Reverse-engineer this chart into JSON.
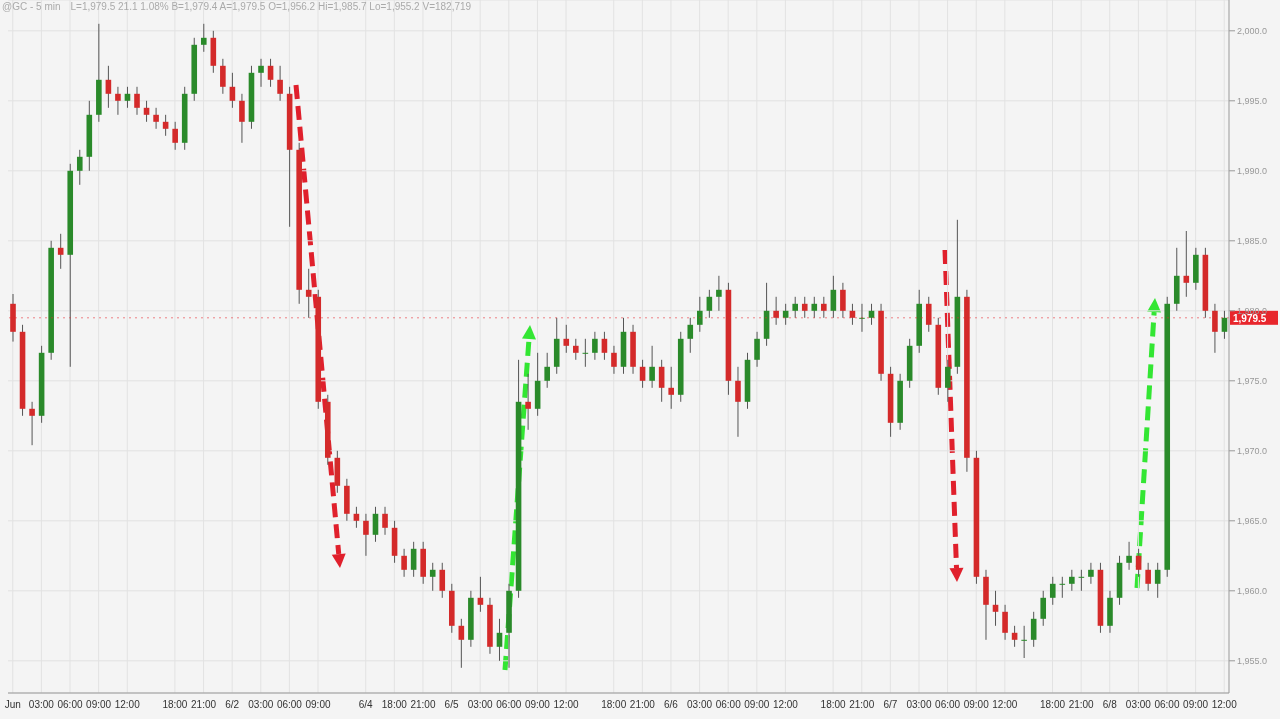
{
  "chart_data": {
    "type": "candlestick",
    "title": "@GC - 5 min",
    "subtitle": "L=1,979.5  21.1  1.08%  B=1,979.4  A=1,979.5  O=1,956.2  Hi=1,985.7  Lo=1,955.2  V=182,719",
    "categories": [
      "Jun",
      null,
      null,
      "03:00",
      null,
      null,
      "06:00",
      null,
      null,
      "09:00",
      null,
      null,
      "12:00",
      null,
      null,
      null,
      null,
      "18:00",
      null,
      null,
      "21:00",
      null,
      null,
      "6/2",
      null,
      null,
      "03:00",
      null,
      null,
      "06:00",
      null,
      null,
      "09:00",
      null,
      null,
      null,
      null,
      "6/4",
      null,
      null,
      "18:00",
      null,
      null,
      "21:00",
      null,
      null,
      "6/5",
      null,
      null,
      "03:00",
      null,
      null,
      "06:00",
      null,
      null,
      "09:00",
      null,
      null,
      "12:00",
      null,
      null,
      null,
      null,
      "18:00",
      null,
      null,
      "21:00",
      null,
      null,
      "6/6",
      null,
      null,
      "03:00",
      null,
      null,
      "06:00",
      null,
      null,
      "09:00",
      null,
      null,
      "12:00",
      null,
      null,
      null,
      null,
      "18:00",
      null,
      null,
      "21:00",
      null,
      null,
      "6/7",
      null,
      null,
      "03:00",
      null,
      null,
      "06:00",
      null,
      null,
      "09:00",
      null,
      null,
      "12:00",
      null,
      null,
      null,
      null,
      "18:00",
      null,
      null,
      "21:00",
      null,
      null,
      "6/8",
      null,
      null,
      "03:00",
      null,
      null,
      "06:00",
      null,
      null,
      "09:00",
      null,
      null,
      "12:00"
    ],
    "ohlc": [
      [
        1980.5,
        1981.2,
        1977.8,
        1978.5
      ],
      [
        1978.5,
        1979,
        1972.5,
        1973
      ],
      [
        1973,
        1973.5,
        1970.4,
        1972.5
      ],
      [
        1972.5,
        1977.5,
        1972,
        1977
      ],
      [
        1977,
        1985,
        1976.5,
        1984.5
      ],
      [
        1984.5,
        1985.5,
        1983,
        1984
      ],
      [
        1984,
        1990.5,
        1976,
        1990
      ],
      [
        1990,
        1991.5,
        1989,
        1991
      ],
      [
        1991,
        1995,
        1990,
        1994
      ],
      [
        1994,
        2000.5,
        1993.5,
        1996.5
      ],
      [
        1996.5,
        1997.5,
        1994.5,
        1995.5
      ],
      [
        1995.5,
        1996,
        1994,
        1995
      ],
      [
        1995,
        1996,
        1994.5,
        1995.5
      ],
      [
        1995.5,
        1996,
        1994,
        1994.5
      ],
      [
        1994.5,
        1995,
        1993.5,
        1994
      ],
      [
        1994,
        1994.5,
        1993,
        1993.5
      ],
      [
        1993.5,
        1994,
        1992.5,
        1993
      ],
      [
        1993,
        1993.5,
        1991.5,
        1992
      ],
      [
        1992,
        1996,
        1991.5,
        1995.5
      ],
      [
        1995.5,
        1999.5,
        1995,
        1999
      ],
      [
        1999,
        2000.5,
        1998.5,
        1999.5
      ],
      [
        1999.5,
        2000,
        1997,
        1997.5
      ],
      [
        1997.5,
        1998,
        1995.5,
        1996
      ],
      [
        1996,
        1997,
        1994.5,
        1995
      ],
      [
        1995,
        1995.5,
        1992,
        1993.5
      ],
      [
        1993.5,
        1997.5,
        1993,
        1997
      ],
      [
        1997,
        1998,
        1996,
        1997.5
      ],
      [
        1997.5,
        1998,
        1996,
        1996.5
      ],
      [
        1996.5,
        1997.5,
        1995,
        1995.5
      ],
      [
        1995.5,
        1996,
        1986,
        1991.5
      ],
      [
        1991.5,
        1992,
        1980.5,
        1981.5
      ],
      [
        1981.5,
        1983,
        1979.5,
        1981
      ],
      [
        1981,
        1981.5,
        1973,
        1973.5
      ],
      [
        1973.5,
        1974,
        1969,
        1969.5
      ],
      [
        1969.5,
        1970,
        1967,
        1967.5
      ],
      [
        1967.5,
        1968,
        1965,
        1965.5
      ],
      [
        1965.5,
        1966,
        1964.5,
        1965
      ],
      [
        1965,
        1965.5,
        1962.5,
        1964
      ],
      [
        1964,
        1966,
        1963.5,
        1965.5
      ],
      [
        1965.5,
        1966,
        1964,
        1964.5
      ],
      [
        1964.5,
        1965,
        1962,
        1962.5
      ],
      [
        1962.5,
        1963,
        1961,
        1961.5
      ],
      [
        1961.5,
        1963.5,
        1961,
        1963
      ],
      [
        1963,
        1963.5,
        1960.5,
        1961
      ],
      [
        1961,
        1962,
        1960,
        1961.5
      ],
      [
        1961.5,
        1962,
        1959.5,
        1960
      ],
      [
        1960,
        1960.5,
        1957,
        1957.5
      ],
      [
        1957.5,
        1958,
        1954.5,
        1956.5
      ],
      [
        1956.5,
        1960,
        1956,
        1959.5
      ],
      [
        1959.5,
        1961,
        1958.5,
        1959
      ],
      [
        1959,
        1959.5,
        1955.5,
        1956
      ],
      [
        1956,
        1958,
        1955,
        1957
      ],
      [
        1957,
        1960.5,
        1954.5,
        1960
      ],
      [
        1960,
        1976.5,
        1959.5,
        1973.5
      ],
      [
        1973.5,
        1975.5,
        1971.5,
        1973
      ],
      [
        1973,
        1977,
        1972.5,
        1975
      ],
      [
        1975,
        1977,
        1974.5,
        1976
      ],
      [
        1976,
        1979.5,
        1975.5,
        1978
      ],
      [
        1978,
        1979,
        1977,
        1977.5
      ],
      [
        1977.5,
        1978,
        1976.5,
        1977
      ],
      [
        1977,
        1978,
        1976,
        1977
      ],
      [
        1977,
        1978.5,
        1976.5,
        1978
      ],
      [
        1978,
        1978.5,
        1976.5,
        1977
      ],
      [
        1977,
        1977.5,
        1975.5,
        1976
      ],
      [
        1976,
        1979.5,
        1975.5,
        1978.5
      ],
      [
        1978.5,
        1979,
        1975.5,
        1976
      ],
      [
        1976,
        1976.5,
        1974.5,
        1975
      ],
      [
        1975,
        1977.5,
        1974.5,
        1976
      ],
      [
        1976,
        1976.5,
        1973.5,
        1974.5
      ],
      [
        1974.5,
        1976,
        1973,
        1974
      ],
      [
        1974,
        1978.5,
        1973.5,
        1978
      ],
      [
        1978,
        1979.5,
        1977,
        1979
      ],
      [
        1979,
        1981,
        1978.5,
        1980
      ],
      [
        1980,
        1981.5,
        1979.5,
        1981
      ],
      [
        1981,
        1982.5,
        1980,
        1981.5
      ],
      [
        1981.5,
        1982,
        1974,
        1975
      ],
      [
        1975,
        1976,
        1971,
        1973.5
      ],
      [
        1973.5,
        1977,
        1973,
        1976.5
      ],
      [
        1976.5,
        1978.5,
        1976,
        1978
      ],
      [
        1978,
        1982,
        1977.5,
        1980
      ],
      [
        1980,
        1981,
        1979,
        1979.5
      ],
      [
        1979.5,
        1980.5,
        1979,
        1980
      ],
      [
        1980,
        1981,
        1979.5,
        1980.5
      ],
      [
        1980.5,
        1981,
        1979.5,
        1980
      ],
      [
        1980,
        1981,
        1979.5,
        1980.5
      ],
      [
        1980.5,
        1981,
        1979.5,
        1980
      ],
      [
        1980,
        1982.5,
        1979.5,
        1981.5
      ],
      [
        1981.5,
        1982,
        1979.5,
        1980
      ],
      [
        1980,
        1980.5,
        1979,
        1979.5
      ],
      [
        1979.5,
        1980.5,
        1978.5,
        1979.5
      ],
      [
        1979.5,
        1980.5,
        1979,
        1980
      ],
      [
        1980,
        1980.5,
        1975,
        1975.5
      ],
      [
        1975.5,
        1976,
        1971,
        1972
      ],
      [
        1972,
        1975.5,
        1971.5,
        1975
      ],
      [
        1975,
        1978,
        1974.5,
        1977.5
      ],
      [
        1977.5,
        1981.5,
        1977,
        1980.5
      ],
      [
        1980.5,
        1981,
        1978.5,
        1979
      ],
      [
        1979,
        1979.5,
        1974,
        1974.5
      ],
      [
        1974.5,
        1976.5,
        1973.5,
        1976
      ],
      [
        1976,
        1986.5,
        1975.5,
        1981
      ],
      [
        1981,
        1981.5,
        1968.5,
        1969.5
      ],
      [
        1969.5,
        1970,
        1960.5,
        1961
      ],
      [
        1961,
        1961.5,
        1956.5,
        1959
      ],
      [
        1959,
        1960,
        1957.5,
        1958.5
      ],
      [
        1958.5,
        1959,
        1956.5,
        1957
      ],
      [
        1957,
        1957.5,
        1956,
        1956.5
      ],
      [
        1956.5,
        1957.5,
        1955.2,
        1956.5
      ],
      [
        1956.5,
        1958.5,
        1956,
        1958
      ],
      [
        1958,
        1960,
        1957.5,
        1959.5
      ],
      [
        1959.5,
        1961,
        1959,
        1960.5
      ],
      [
        1960.5,
        1961,
        1959.5,
        1960.5
      ],
      [
        1960.5,
        1961.5,
        1960,
        1961
      ],
      [
        1961,
        1961.5,
        1960,
        1961
      ],
      [
        1961,
        1962,
        1960.5,
        1961.5
      ],
      [
        1961.5,
        1962,
        1957,
        1957.5
      ],
      [
        1957.5,
        1960,
        1957,
        1959.5
      ],
      [
        1959.5,
        1962.5,
        1959,
        1962
      ],
      [
        1962,
        1963.5,
        1961.5,
        1962.5
      ],
      [
        1962.5,
        1963,
        1961,
        1961.5
      ],
      [
        1961.5,
        1962,
        1960,
        1960.5
      ],
      [
        1960.5,
        1962,
        1959.5,
        1961.5
      ],
      [
        1961.5,
        1981,
        1961,
        1980.5
      ],
      [
        1980.5,
        1984.5,
        1980,
        1982.5
      ],
      [
        1982.5,
        1985.7,
        1981,
        1982
      ],
      [
        1982,
        1984.5,
        1981.5,
        1984
      ],
      [
        1984,
        1984.5,
        1979.5,
        1980
      ],
      [
        1980,
        1980.5,
        1977,
        1978.5
      ],
      [
        1978.5,
        1980,
        1978,
        1979.5
      ]
    ],
    "ylim": [
      1952.7,
      2002.2
    ],
    "yticks": [
      {
        "value": 1955,
        "label": "1,955.0"
      },
      {
        "value": 1960,
        "label": "1,960.0"
      },
      {
        "value": 1965,
        "label": "1,965.0"
      },
      {
        "value": 1970,
        "label": "1,970.0"
      },
      {
        "value": 1975,
        "label": "1,975.0"
      },
      {
        "value": 1980,
        "label": "1,980.0"
      },
      {
        "value": 1985,
        "label": "1,985.0"
      },
      {
        "value": 1990,
        "label": "1,990.0"
      },
      {
        "value": 1995,
        "label": "1,995.0"
      },
      {
        "value": 2000,
        "label": "2,000.0"
      }
    ],
    "grid": true,
    "ref_lines": [
      {
        "axis": "y",
        "value": 1979.5,
        "label": "1,979.5",
        "color": "#e8262c"
      }
    ]
  }
}
